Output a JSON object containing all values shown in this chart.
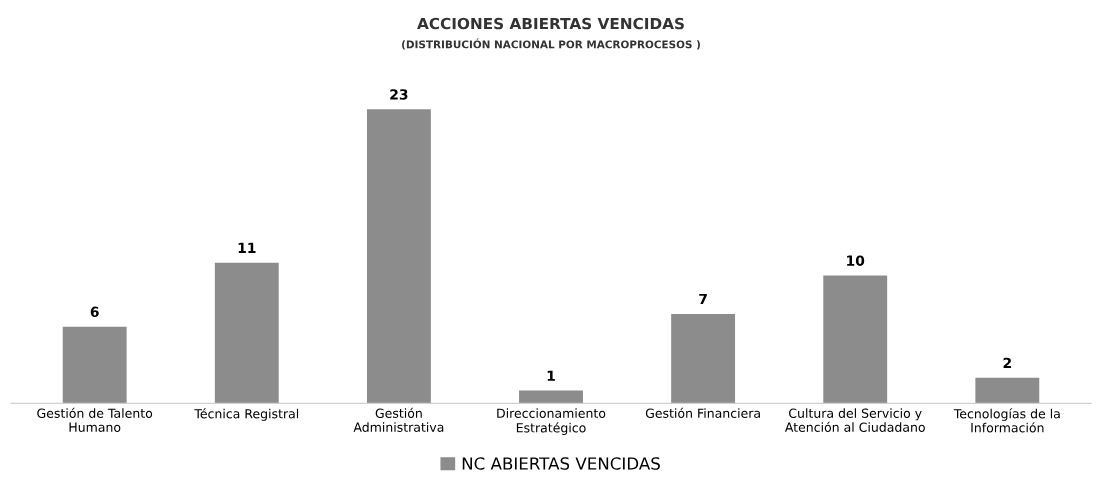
{
  "chart_data": {
    "type": "bar",
    "title": "ACCIONES ABIERTAS VENCIDAS",
    "subtitle": "(DISTRIBUCIÓN NACIONAL POR MACROPROCESOS )",
    "categories": [
      "Gestión de Talento\nHumano",
      "Técnica Registral",
      "Gestión\nAdministrativa",
      "Direccionamiento\nEstratégico",
      "Gestión Financiera",
      "Cultura del Servicio y\nAtención al Ciudadano",
      "Tecnologías de la\nInformación"
    ],
    "series": [
      {
        "name": "NC ABIERTAS VENCIDAS",
        "color": "#8c8c8c",
        "values": [
          6,
          11,
          23,
          1,
          7,
          10,
          2
        ]
      }
    ],
    "data_labels": true,
    "legend": "bottom",
    "grid": false
  }
}
